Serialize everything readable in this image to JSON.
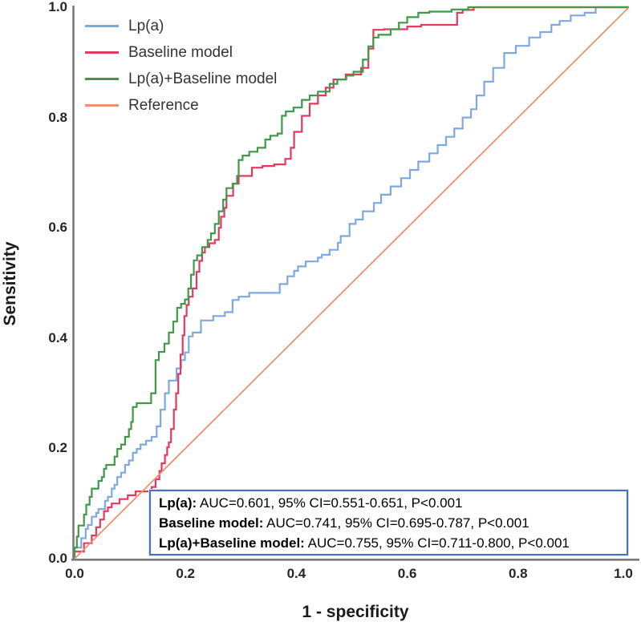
{
  "axes": {
    "x": {
      "label": "1 - specificity",
      "ticks": [
        "0.0",
        "0.2",
        "0.4",
        "0.6",
        "0.8",
        "1.0"
      ]
    },
    "y": {
      "label": "Sensitivity",
      "ticks": [
        "0.0",
        "0.2",
        "0.4",
        "0.6",
        "0.8",
        "1.0"
      ]
    }
  },
  "legend": {
    "items": [
      {
        "label": "Lp(a)",
        "color": "#7fa8e0"
      },
      {
        "label": "Baseline model",
        "color": "#e03a5f"
      },
      {
        "label": "Lp(a)+Baseline model",
        "color": "#3f9948"
      },
      {
        "label": "Reference",
        "color": "#f09070"
      }
    ]
  },
  "stats_box": {
    "border_color": "#4472c4",
    "lines": [
      {
        "label": "Lp(a):",
        "text": " AUC=0.601, 95% CI=0.551-0.651, P<0.001"
      },
      {
        "label": "Baseline model:",
        "text": " AUC=0.741, 95% CI=0.695-0.787, P<0.001"
      },
      {
        "label": "Lp(a)+Baseline model:",
        "text": " AUC=0.755, 95% CI=0.711-0.800, P<0.001"
      }
    ]
  },
  "chart_data": {
    "type": "line",
    "title": "",
    "xlabel": "1 - specificity",
    "ylabel": "Sensitivity",
    "xlim": [
      0,
      1
    ],
    "ylim": [
      0,
      1
    ],
    "grid": false,
    "legend_position": "top-left",
    "axis_color": "#7a7a7a",
    "series": [
      {
        "name": "Lp(a)",
        "color": "#7fa8e0",
        "step": true,
        "auc": 0.601,
        "ci_low": 0.551,
        "ci_high": 0.651,
        "p": "<0.001",
        "points": [
          [
            0,
            0
          ],
          [
            0.012,
            0.02
          ],
          [
            0.02,
            0.037
          ],
          [
            0.024,
            0.054
          ],
          [
            0.031,
            0.061
          ],
          [
            0.039,
            0.076
          ],
          [
            0.043,
            0.083
          ],
          [
            0.055,
            0.09
          ],
          [
            0.06,
            0.105
          ],
          [
            0.067,
            0.112
          ],
          [
            0.072,
            0.127
          ],
          [
            0.077,
            0.134
          ],
          [
            0.084,
            0.148
          ],
          [
            0.091,
            0.156
          ],
          [
            0.098,
            0.17
          ],
          [
            0.105,
            0.178
          ],
          [
            0.112,
            0.192
          ],
          [
            0.119,
            0.199
          ],
          [
            0.129,
            0.207
          ],
          [
            0.139,
            0.214
          ],
          [
            0.148,
            0.221
          ],
          [
            0.155,
            0.24
          ],
          [
            0.163,
            0.27
          ],
          [
            0.17,
            0.3
          ],
          [
            0.184,
            0.323
          ],
          [
            0.192,
            0.345
          ],
          [
            0.199,
            0.36
          ],
          [
            0.206,
            0.374
          ],
          [
            0.213,
            0.403
          ],
          [
            0.228,
            0.41
          ],
          [
            0.25,
            0.432
          ],
          [
            0.271,
            0.44
          ],
          [
            0.285,
            0.447
          ],
          [
            0.296,
            0.469
          ],
          [
            0.315,
            0.475
          ],
          [
            0.33,
            0.482
          ],
          [
            0.37,
            0.482
          ],
          [
            0.384,
            0.498
          ],
          [
            0.396,
            0.512
          ],
          [
            0.403,
            0.522
          ],
          [
            0.417,
            0.53
          ],
          [
            0.439,
            0.539
          ],
          [
            0.446,
            0.546
          ],
          [
            0.46,
            0.551
          ],
          [
            0.475,
            0.56
          ],
          [
            0.48,
            0.573
          ],
          [
            0.496,
            0.585
          ],
          [
            0.507,
            0.607
          ],
          [
            0.52,
            0.615
          ],
          [
            0.54,
            0.63
          ],
          [
            0.553,
            0.645
          ],
          [
            0.57,
            0.66
          ],
          [
            0.589,
            0.675
          ],
          [
            0.605,
            0.69
          ],
          [
            0.62,
            0.705
          ],
          [
            0.64,
            0.72
          ],
          [
            0.655,
            0.735
          ],
          [
            0.67,
            0.75
          ],
          [
            0.685,
            0.765
          ],
          [
            0.7,
            0.78
          ],
          [
            0.715,
            0.8
          ],
          [
            0.725,
            0.815
          ],
          [
            0.739,
            0.84
          ],
          [
            0.755,
            0.865
          ],
          [
            0.775,
            0.89
          ],
          [
            0.796,
            0.917
          ],
          [
            0.82,
            0.93
          ],
          [
            0.84,
            0.945
          ],
          [
            0.86,
            0.955
          ],
          [
            0.875,
            0.968
          ],
          [
            0.895,
            0.975
          ],
          [
            0.92,
            0.985
          ],
          [
            0.94,
            0.99
          ],
          [
            0.958,
            1
          ],
          [
            1,
            1
          ]
        ]
      },
      {
        "name": "Baseline model",
        "color": "#e03a5f",
        "step": true,
        "auc": 0.741,
        "ci_low": 0.695,
        "ci_high": 0.787,
        "p": "<0.001",
        "points": [
          [
            0,
            0
          ],
          [
            0.017,
            0.013
          ],
          [
            0.031,
            0.028
          ],
          [
            0.039,
            0.042
          ],
          [
            0.046,
            0.057
          ],
          [
            0.053,
            0.071
          ],
          [
            0.06,
            0.086
          ],
          [
            0.067,
            0.093
          ],
          [
            0.081,
            0.1
          ],
          [
            0.096,
            0.108
          ],
          [
            0.11,
            0.115
          ],
          [
            0.139,
            0.122
          ],
          [
            0.146,
            0.13
          ],
          [
            0.153,
            0.144
          ],
          [
            0.157,
            0.159
          ],
          [
            0.163,
            0.173
          ],
          [
            0.167,
            0.188
          ],
          [
            0.17,
            0.202
          ],
          [
            0.174,
            0.211
          ],
          [
            0.179,
            0.235
          ],
          [
            0.183,
            0.27
          ],
          [
            0.187,
            0.3
          ],
          [
            0.191,
            0.335
          ],
          [
            0.195,
            0.37
          ],
          [
            0.198,
            0.405
          ],
          [
            0.202,
            0.44
          ],
          [
            0.206,
            0.46
          ],
          [
            0.213,
            0.475
          ],
          [
            0.22,
            0.49
          ],
          [
            0.225,
            0.52
          ],
          [
            0.23,
            0.54
          ],
          [
            0.235,
            0.555
          ],
          [
            0.243,
            0.565
          ],
          [
            0.253,
            0.572
          ],
          [
            0.26,
            0.578
          ],
          [
            0.264,
            0.6
          ],
          [
            0.27,
            0.62
          ],
          [
            0.274,
            0.636
          ],
          [
            0.286,
            0.658
          ],
          [
            0.296,
            0.68
          ],
          [
            0.32,
            0.694
          ],
          [
            0.339,
            0.709
          ],
          [
            0.36,
            0.712
          ],
          [
            0.38,
            0.715
          ],
          [
            0.39,
            0.725
          ],
          [
            0.396,
            0.745
          ],
          [
            0.41,
            0.774
          ],
          [
            0.424,
            0.803
          ],
          [
            0.439,
            0.825
          ],
          [
            0.453,
            0.84
          ],
          [
            0.467,
            0.854
          ],
          [
            0.489,
            0.869
          ],
          [
            0.517,
            0.878
          ],
          [
            0.53,
            0.89
          ],
          [
            0.539,
            0.925
          ],
          [
            0.558,
            0.959
          ],
          [
            0.6,
            0.96
          ],
          [
            0.625,
            0.965
          ],
          [
            0.69,
            0.968
          ],
          [
            0.7,
            0.99
          ],
          [
            0.72,
            0.995
          ],
          [
            0.745,
            1
          ],
          [
            1,
            1
          ]
        ]
      },
      {
        "name": "Lp(a)+Baseline model",
        "color": "#3f9948",
        "step": true,
        "auc": 0.755,
        "ci_low": 0.711,
        "ci_high": 0.8,
        "p": "<0.001",
        "points": [
          [
            0,
            0
          ],
          [
            0.004,
            0.02
          ],
          [
            0.007,
            0.04
          ],
          [
            0.017,
            0.06
          ],
          [
            0.021,
            0.08
          ],
          [
            0.027,
            0.098
          ],
          [
            0.031,
            0.112
          ],
          [
            0.043,
            0.127
          ],
          [
            0.049,
            0.141
          ],
          [
            0.053,
            0.148
          ],
          [
            0.057,
            0.163
          ],
          [
            0.072,
            0.17
          ],
          [
            0.077,
            0.185
          ],
          [
            0.084,
            0.199
          ],
          [
            0.091,
            0.207
          ],
          [
            0.098,
            0.221
          ],
          [
            0.102,
            0.235
          ],
          [
            0.105,
            0.248
          ],
          [
            0.112,
            0.275
          ],
          [
            0.138,
            0.282
          ],
          [
            0.146,
            0.3
          ],
          [
            0.152,
            0.36
          ],
          [
            0.162,
            0.375
          ],
          [
            0.17,
            0.39
          ],
          [
            0.178,
            0.41
          ],
          [
            0.185,
            0.43
          ],
          [
            0.192,
            0.455
          ],
          [
            0.199,
            0.462
          ],
          [
            0.205,
            0.47
          ],
          [
            0.21,
            0.49
          ],
          [
            0.215,
            0.515
          ],
          [
            0.221,
            0.541
          ],
          [
            0.23,
            0.55
          ],
          [
            0.24,
            0.565
          ],
          [
            0.246,
            0.578
          ],
          [
            0.253,
            0.59
          ],
          [
            0.26,
            0.607
          ],
          [
            0.268,
            0.63
          ],
          [
            0.274,
            0.651
          ],
          [
            0.285,
            0.672
          ],
          [
            0.293,
            0.68
          ],
          [
            0.296,
            0.694
          ],
          [
            0.303,
            0.723
          ],
          [
            0.315,
            0.731
          ],
          [
            0.33,
            0.738
          ],
          [
            0.344,
            0.745
          ],
          [
            0.353,
            0.76
          ],
          [
            0.366,
            0.767
          ],
          [
            0.374,
            0.771
          ],
          [
            0.381,
            0.803
          ],
          [
            0.395,
            0.811
          ],
          [
            0.41,
            0.818
          ],
          [
            0.424,
            0.832
          ],
          [
            0.439,
            0.84
          ],
          [
            0.46,
            0.847
          ],
          [
            0.474,
            0.861
          ],
          [
            0.49,
            0.869
          ],
          [
            0.503,
            0.876
          ],
          [
            0.52,
            0.883
          ],
          [
            0.53,
            0.905
          ],
          [
            0.539,
            0.929
          ],
          [
            0.548,
            0.945
          ],
          [
            0.57,
            0.95
          ],
          [
            0.585,
            0.96
          ],
          [
            0.6,
            0.972
          ],
          [
            0.62,
            0.982
          ],
          [
            0.64,
            0.99
          ],
          [
            0.68,
            0.992
          ],
          [
            0.71,
            0.996
          ],
          [
            0.74,
            1
          ],
          [
            1,
            1
          ]
        ]
      },
      {
        "name": "Reference",
        "color": "#f09070",
        "step": false,
        "points": [
          [
            0,
            0
          ],
          [
            1,
            1
          ]
        ]
      }
    ]
  }
}
